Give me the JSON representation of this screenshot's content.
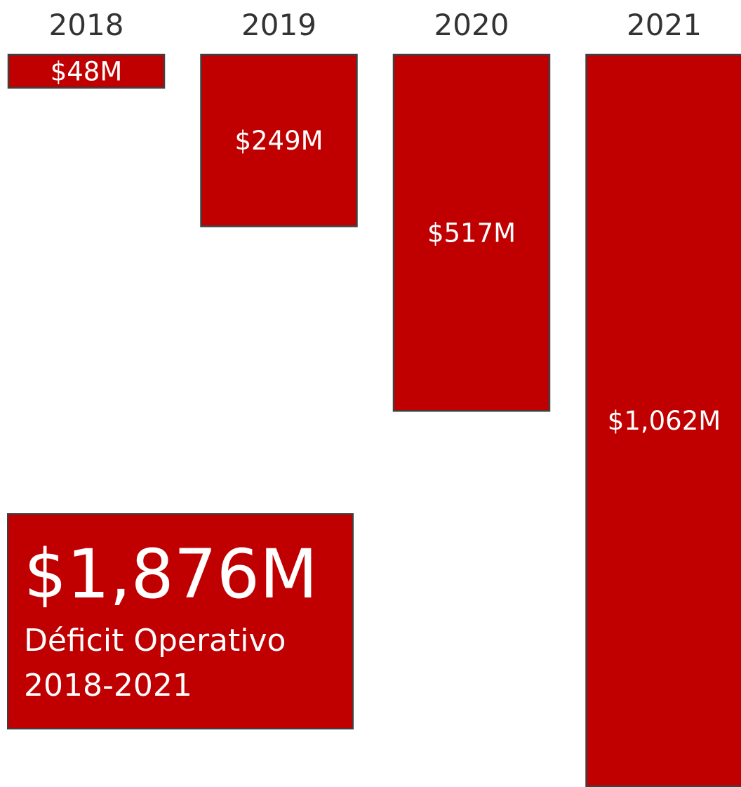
{
  "colors": {
    "bar_fill": "#c00000",
    "bar_stroke": "#404040",
    "label_text": "#333333",
    "value_text": "#ffffff"
  },
  "chart_data": {
    "type": "bar",
    "orientation": "vertical-hanging",
    "categories": [
      "2018",
      "2019",
      "2020",
      "2021"
    ],
    "values": [
      48,
      249,
      517,
      1062
    ],
    "value_labels": [
      "$48M",
      "$249M",
      "$517M",
      "$1,062M"
    ],
    "unit": "$M",
    "title": "",
    "xlabel": "",
    "ylabel": "",
    "grid": false
  },
  "summary": {
    "total": "$1,876M",
    "label": "Déficit Operativo",
    "period": "2018-2021"
  }
}
